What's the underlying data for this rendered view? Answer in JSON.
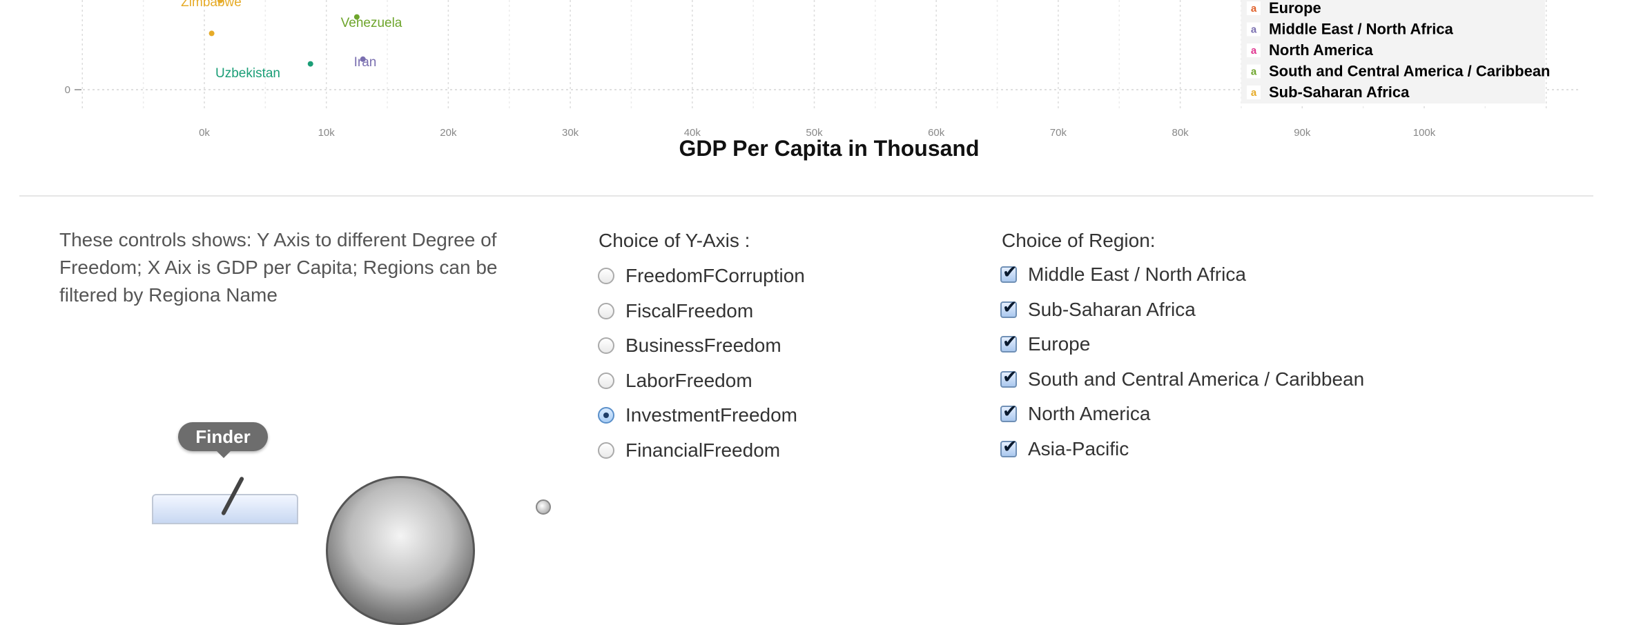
{
  "chart_data": {
    "type": "scatter",
    "xlabel": "GDP Per Capita in Thousand",
    "ylabel": "",
    "x_ticks": [
      {
        "value": 0,
        "label": "0k"
      },
      {
        "value": 10,
        "label": "10k"
      },
      {
        "value": 20,
        "label": "20k"
      },
      {
        "value": 30,
        "label": "30k"
      },
      {
        "value": 40,
        "label": "40k"
      },
      {
        "value": 50,
        "label": "50k"
      },
      {
        "value": 60,
        "label": "60k"
      },
      {
        "value": 70,
        "label": "70k"
      },
      {
        "value": 80,
        "label": "80k"
      },
      {
        "value": 90,
        "label": "90k"
      },
      {
        "value": 100,
        "label": "100k"
      }
    ],
    "y_ticks": [
      {
        "value": 0,
        "label": "0"
      }
    ],
    "xlim": [
      -10,
      112
    ],
    "ylim": [
      0,
      20
    ],
    "grid": true,
    "legend_placement": "top-right",
    "legend": [
      {
        "name": "Europe",
        "color": "#e0602a"
      },
      {
        "name": "Middle East / North Africa",
        "color": "#7a6fb0"
      },
      {
        "name": "North America",
        "color": "#e0358f"
      },
      {
        "name": "South and Central America / Caribbean",
        "color": "#6ea52c"
      },
      {
        "name": "Sub-Saharan Africa",
        "color": "#e6ab28"
      }
    ],
    "points": [
      {
        "name": "Zimbabwe",
        "x": 1.3,
        "y": 19,
        "color": "#e6ab28",
        "show_label": true
      },
      {
        "name": "",
        "x": 0.6,
        "y": 12,
        "color": "#e6ab28",
        "show_label": false
      },
      {
        "name": "Venezuela",
        "x": 12.5,
        "y": 15.5,
        "color": "#6ea52c",
        "show_label": false
      },
      {
        "name": "Iran",
        "x": 13,
        "y": 6.5,
        "color": "#7a6fb0",
        "show_label": false
      },
      {
        "name": "Uzbekistan",
        "x": 8.7,
        "y": 5.5,
        "color": "#1b9e77",
        "show_label": true
      }
    ],
    "labels": [
      {
        "text": "Zimbabwe",
        "color": "#e6ab28"
      },
      {
        "text": "Venezuela",
        "color": "#6ea52c"
      },
      {
        "text": "Iran",
        "color": "#7a6fb0"
      },
      {
        "text": "Uzbekistan",
        "color": "#1b9e77"
      }
    ]
  },
  "controls": {
    "description": "These controls shows: Y Axis to different Degree of Freedom; X Aix is GDP per Capita; Regions can be filtered by Regiona Name",
    "yaxis_title": "Choice of Y-Axis :",
    "yaxis_options": [
      {
        "label": "FreedomFCorruption",
        "selected": false
      },
      {
        "label": "FiscalFreedom",
        "selected": false
      },
      {
        "label": "BusinessFreedom",
        "selected": false
      },
      {
        "label": "LaborFreedom",
        "selected": false
      },
      {
        "label": "InvestmentFreedom",
        "selected": true
      },
      {
        "label": "FinancialFreedom",
        "selected": false
      }
    ],
    "region_title": "Choice of Region:",
    "region_options": [
      {
        "label": "Middle East / North Africa",
        "checked": true
      },
      {
        "label": "Sub-Saharan Africa",
        "checked": true
      },
      {
        "label": "Europe",
        "checked": true
      },
      {
        "label": "South and Central America / Caribbean",
        "checked": true
      },
      {
        "label": "North America",
        "checked": true
      },
      {
        "label": "Asia-Pacific",
        "checked": true
      }
    ]
  },
  "dock": {
    "tooltip": "Finder",
    "icons": [
      "finder-icon",
      "disk-icon",
      "knob-icon"
    ]
  }
}
